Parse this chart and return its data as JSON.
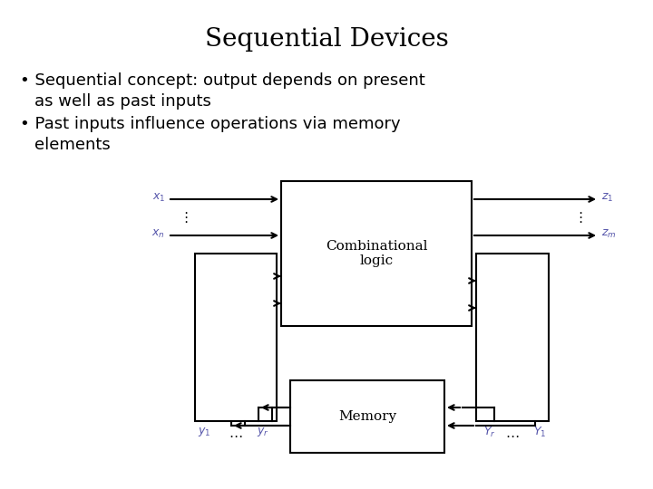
{
  "title": "Sequential Devices",
  "bg_color": "#ffffff",
  "title_fontsize": 20,
  "text_fontsize": 13,
  "label_color": "#5555aa",
  "diagram": {
    "comb_label": "Combinational\nlogic",
    "mem_label": "Memory",
    "x1_label": "$x_1$",
    "xn_label": "$x_n$",
    "z1_label": "$z_1$",
    "zm_label": "$z_m$",
    "y1_label": "$y_1$",
    "yr_label": "$y_r$",
    "Yr_label": "$Y_r$",
    "Y1_label": "$Y_1$"
  }
}
